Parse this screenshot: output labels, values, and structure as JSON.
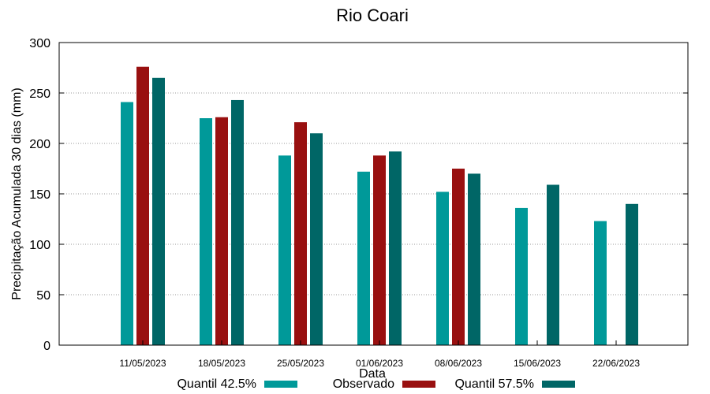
{
  "chart_data": {
    "type": "bar",
    "title": "Rio Coari",
    "xlabel": "Data",
    "ylabel": "Precipitação Acumulada 30 dias (mm)",
    "ylim": [
      0,
      300
    ],
    "yticks": [
      0,
      50,
      100,
      150,
      200,
      250,
      300
    ],
    "grid": true,
    "legend_position": "bottom",
    "categories": [
      "11/05/2023",
      "18/05/2023",
      "25/05/2023",
      "01/06/2023",
      "08/06/2023",
      "15/06/2023",
      "22/06/2023"
    ],
    "series": [
      {
        "name": "Quantil 42.5%",
        "color": "#009999",
        "values": [
          241,
          225,
          188,
          172,
          152,
          136,
          123
        ]
      },
      {
        "name": "Observado",
        "color": "#991010",
        "values": [
          276,
          226,
          221,
          188,
          175,
          null,
          null
        ]
      },
      {
        "name": "Quantil 57.5%",
        "color": "#006666",
        "values": [
          265,
          243,
          210,
          192,
          170,
          159,
          140
        ]
      }
    ]
  }
}
